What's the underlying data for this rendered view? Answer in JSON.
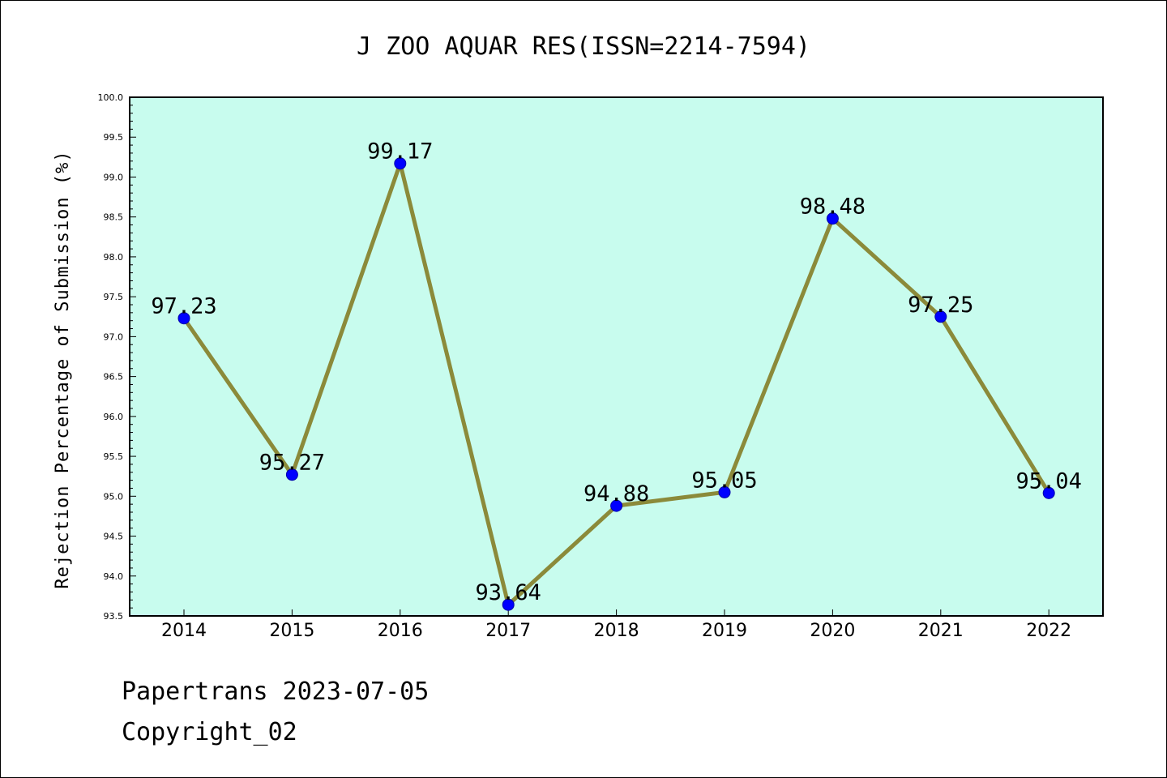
{
  "chart_data": {
    "type": "line",
    "title": "J ZOO AQUAR RES(ISSN=2214-7594)",
    "ylabel": "Rejection Percentage of Submission (%)",
    "xlabel": "",
    "x": [
      "2014",
      "2015",
      "2016",
      "2017",
      "2018",
      "2019",
      "2020",
      "2021",
      "2022"
    ],
    "series": [
      {
        "values": [
          97.23,
          95.27,
          99.17,
          93.64,
          94.88,
          95.05,
          98.48,
          97.25,
          95.04
        ],
        "labels": [
          "97.23",
          "95.27",
          "99.17",
          "93.64",
          "94.88",
          "95.05",
          "98.48",
          "97.25",
          "95.04"
        ]
      }
    ],
    "ylim": [
      93.5,
      100.0
    ],
    "yticks": [
      "93.5",
      "94.0",
      "94.5",
      "95.0",
      "95.5",
      "96.0",
      "96.5",
      "97.0",
      "97.5",
      "98.0",
      "98.5",
      "99.0",
      "99.5",
      "100.0"
    ],
    "grid": false,
    "colors": {
      "plot_bg": "#c8fcee",
      "line": "#8b8a3a",
      "marker": "#0000ff"
    }
  },
  "footer": {
    "line1": "Papertrans 2023-07-05",
    "line2": "Copyright_02"
  }
}
